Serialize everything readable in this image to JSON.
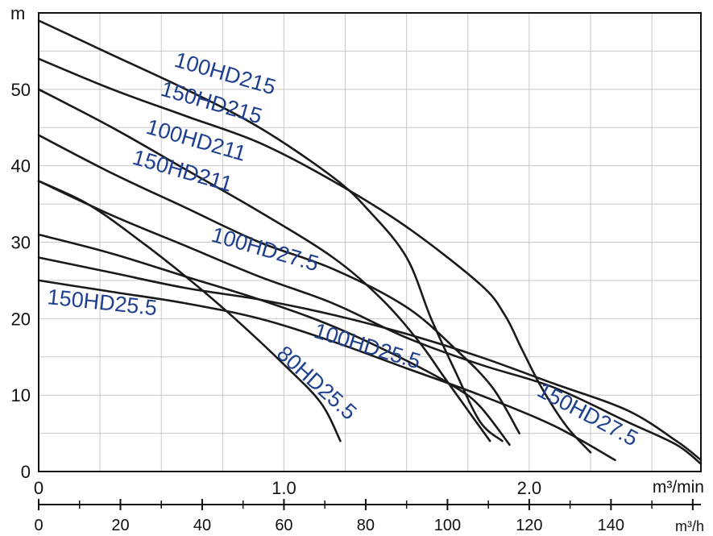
{
  "chart_data": {
    "type": "line",
    "title": "",
    "ylabel": "m",
    "xlabel": "m³/min",
    "xlabel_secondary": "m³/h",
    "xlim": [
      0,
      2.7
    ],
    "ylim": [
      0,
      60
    ],
    "xticks": [
      0,
      1.0,
      2.0
    ],
    "xtick_labels": [
      "0",
      "1.0",
      "2.0"
    ],
    "yticks": [
      0,
      10,
      20,
      30,
      40,
      50
    ],
    "ytick_labels": [
      "0",
      "10",
      "20",
      "30",
      "40",
      "50"
    ],
    "secondary_ticks": [
      0,
      20,
      40,
      60,
      80,
      100,
      120,
      140
    ],
    "secondary_tick_labels": [
      "0",
      "20",
      "40",
      "60",
      "80",
      "100",
      "120",
      "140"
    ],
    "grid": true,
    "legend": "none (curves labelled inline)",
    "colors": {
      "curve": "#1a1a1a",
      "label": "#1f3f8f",
      "grid": "#c8c8c8"
    },
    "series": [
      {
        "name": "100HD215",
        "x": [
          0,
          0.3,
          0.6,
          0.9,
          1.2,
          1.35,
          1.5,
          1.6,
          1.7,
          1.8,
          1.89
        ],
        "y": [
          59,
          54.5,
          50,
          45,
          38.5,
          34,
          28,
          20,
          13,
          6.5,
          4
        ]
      },
      {
        "name": "150HD215",
        "x": [
          0,
          0.3,
          0.6,
          0.9,
          1.2,
          1.5,
          1.8,
          1.9,
          1.97,
          2.05,
          2.15,
          2.25
        ],
        "y": [
          54,
          50,
          46.5,
          43,
          38,
          32,
          24.5,
          20.5,
          16,
          11,
          6,
          2.5
        ]
      },
      {
        "name": "100HD211",
        "x": [
          0,
          0.3,
          0.6,
          0.9,
          1.2,
          1.4,
          1.55,
          1.65,
          1.75,
          1.84
        ],
        "y": [
          50,
          45,
          39.5,
          34,
          28,
          22.5,
          17,
          12.5,
          8,
          4
        ]
      },
      {
        "name": "150HD211",
        "x": [
          0,
          0.3,
          0.6,
          0.9,
          1.2,
          1.5,
          1.7,
          1.85,
          1.96
        ],
        "y": [
          44,
          39,
          34.5,
          30,
          26.5,
          21.5,
          16,
          11,
          5
        ]
      },
      {
        "name": "100HD27.5",
        "x": [
          0,
          0.3,
          0.6,
          0.9,
          1.2,
          1.5,
          1.8,
          2.1,
          2.4,
          2.6,
          2.7
        ],
        "y": [
          38,
          33.5,
          29.5,
          25.5,
          22,
          17.5,
          14,
          11,
          6.5,
          3.5,
          1
        ]
      },
      {
        "name": "150HD27.5",
        "x": [
          0,
          0.3,
          0.6,
          0.9,
          1.2,
          1.5,
          1.8,
          2.1,
          2.4,
          2.6,
          2.7
        ],
        "y": [
          28,
          26,
          24,
          22.5,
          20.5,
          18,
          15,
          11.5,
          8,
          4,
          1.5
        ]
      },
      {
        "name": "100HD25.5",
        "x": [
          0,
          0.3,
          0.6,
          0.9,
          1.2,
          1.5,
          1.7,
          1.8,
          1.92
        ],
        "y": [
          31,
          28.5,
          25.5,
          22.5,
          19,
          14.5,
          11,
          8.5,
          3.5
        ]
      },
      {
        "name": "150HD25.5",
        "x": [
          0,
          0.3,
          0.6,
          0.9,
          1.2,
          1.5,
          1.8,
          2.1,
          2.35
        ],
        "y": [
          25,
          23.5,
          22,
          20,
          17,
          13.5,
          10,
          6,
          1.5
        ]
      },
      {
        "name": "80HD25.5",
        "x": [
          0,
          0.2,
          0.4,
          0.6,
          0.8,
          1.0,
          1.15,
          1.23
        ],
        "y": [
          38,
          35,
          30.5,
          25.5,
          20,
          14,
          9,
          4
        ]
      }
    ],
    "inline_labels": [
      {
        "text": "100HD215",
        "series": "100HD215"
      },
      {
        "text": "150HD215",
        "series": "150HD215"
      },
      {
        "text": "100HD211",
        "series": "100HD211"
      },
      {
        "text": "150HD211",
        "series": "150HD211"
      },
      {
        "text": "100HD27.5",
        "series": "100HD27.5"
      },
      {
        "text": "150HD25.5",
        "series": "150HD25.5"
      },
      {
        "text": "100HD25.5",
        "series": "100HD25.5"
      },
      {
        "text": "80HD25.5",
        "series": "80HD25.5"
      },
      {
        "text": "150HD27.5",
        "series": "150HD27.5"
      }
    ]
  }
}
